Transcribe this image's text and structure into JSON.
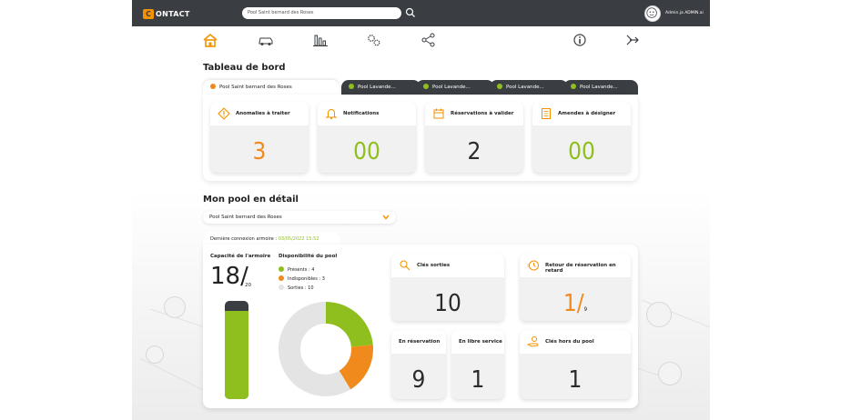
{
  "app": {
    "logo_mark": "C",
    "logo_text": "ONTACT"
  },
  "search": {
    "value": "Pool Saint bernard des Roses"
  },
  "user": {
    "name": "Admin.ja ADMIN.ai"
  },
  "nav": [
    "home-icon",
    "car-icon",
    "chart-icon",
    "settings-gears-icon",
    "share-icon",
    "info-icon",
    "logout-icon"
  ],
  "dashboard": {
    "title": "Tableau de bord",
    "tabs": [
      {
        "label": "Pool Saint bernard des Roses",
        "status_color": "#f08a1c",
        "active": true
      },
      {
        "label": "Pool Lavande...",
        "status_color": "#8fbf1f",
        "active": false
      },
      {
        "label": "Pool Lavande...",
        "status_color": "#8fbf1f",
        "active": false
      },
      {
        "label": "Pool Lavande...",
        "status_color": "#8fbf1f",
        "active": false
      },
      {
        "label": "Pool Lavande...",
        "status_color": "#8fbf1f",
        "active": false
      }
    ],
    "cards": [
      {
        "label": "Anomalies à traiter",
        "value": "3",
        "icon": "warning-icon"
      },
      {
        "label": "Notifications",
        "value": "00",
        "icon": "bell-icon"
      },
      {
        "label": "Réservations à valider",
        "value": "2",
        "icon": "calendar-icon"
      },
      {
        "label": "Amendes à désigner",
        "value": "00",
        "icon": "document-icon"
      }
    ]
  },
  "pool": {
    "title": "Mon pool en détail",
    "selected": "Pool Saint bernard des Roses",
    "last_connection_label": "Dernière connexion armoire : ",
    "last_connection_value": "03/05/2022 15:52",
    "capacity": {
      "label": "Capacité de l'armoire",
      "value": "18/",
      "total": "20",
      "fill": 0.9
    },
    "availability": {
      "label": "Disponibilité du pool",
      "legend": [
        {
          "label": "Présents : 4",
          "value": 4,
          "color": "#8fbf1f"
        },
        {
          "label": "Indisponibles : 3",
          "value": 3,
          "color": "#f08a1c"
        },
        {
          "label": "Sorties : 10",
          "value": 10,
          "color": "#e4e4e4"
        }
      ]
    },
    "cards": {
      "keys_out": {
        "label": "Clés sorties",
        "value": "10"
      },
      "late_return": {
        "label": "Retour de réservation en retard",
        "value": "1/",
        "total": "9"
      },
      "reserved": {
        "label": "En réservation",
        "value": "9"
      },
      "free_service": {
        "label": "En libre service",
        "value": "1"
      },
      "keys_outside": {
        "label": "Clés hors du pool",
        "value": "1"
      }
    }
  },
  "colors": {
    "accent_orange": "#f08a1c",
    "accent_green": "#8fbf1f",
    "topbar": "#3a3d42"
  }
}
